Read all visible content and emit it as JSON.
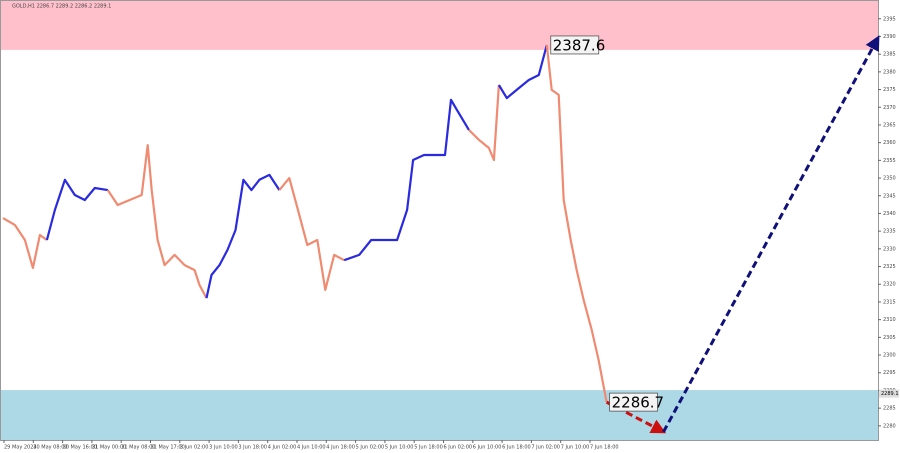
{
  "chart_data": {
    "type": "line",
    "title": "GOLD,H1  2286.7 2289.2 2286.2 2289.1",
    "xlim": [
      0,
      880
    ],
    "ylim": [
      2276.0,
      2400.3
    ],
    "yticks": [
      2280,
      2285,
      2290,
      2295,
      2300,
      2305,
      2310,
      2315,
      2320,
      2325,
      2330,
      2335,
      2340,
      2345,
      2350,
      2355,
      2360,
      2365,
      2370,
      2375,
      2380,
      2385,
      2390,
      2395
    ],
    "xtick_labels": [
      "29 May 2024",
      "30 May 08:00",
      "30 May 16:00",
      "31 May 00:00",
      "31 May 08:00",
      "31 May 17:00",
      "3 Jun 02:00",
      "3 Jun 10:00",
      "3 Jun 18:00",
      "4 Jun 02:00",
      "4 Jun 10:00",
      "4 Jun 18:00",
      "5 Jun 02:00",
      "5 Jun 10:00",
      "5 Jun 18:00",
      "6 Jun 02:00",
      "6 Jun 10:00",
      "6 Jun 18:00",
      "7 Jun 02:00",
      "7 Jun 10:00",
      "7 Jun 18:00"
    ],
    "zones": [
      {
        "color": "#ffc0cb",
        "range": [
          2386.2,
          2400.3
        ]
      },
      {
        "color": "#add8e6",
        "range": [
          2276.0,
          2290.1
        ]
      }
    ],
    "segments": [
      {
        "color": "#f08a70",
        "x": [
          3,
          15,
          25,
          33,
          40,
          47
        ],
        "values": [
          2338.7,
          2336.7,
          2332.5,
          2324.6,
          2333.9,
          2332.5
        ]
      },
      {
        "color": "#2a2ae0",
        "x": [
          47,
          55,
          65,
          75,
          85,
          95,
          108
        ],
        "values": [
          2332.5,
          2341.0,
          2349.5,
          2345.2,
          2343.8,
          2347.2,
          2346.6
        ]
      },
      {
        "color": "#f08a70",
        "x": [
          108,
          118,
          130,
          142,
          148,
          152,
          158,
          165,
          175,
          185,
          195,
          200,
          207
        ],
        "values": [
          2346.6,
          2342.4,
          2343.8,
          2345.2,
          2359.3,
          2346.6,
          2332.5,
          2325.4,
          2328.3,
          2325.4,
          2324.0,
          2319.8,
          2316.1
        ]
      },
      {
        "color": "#2a2ae0",
        "x": [
          207,
          212,
          220,
          228,
          236,
          244,
          252,
          260,
          270,
          280
        ],
        "values": [
          2316.1,
          2322.6,
          2325.4,
          2329.7,
          2335.3,
          2349.5,
          2346.6,
          2349.5,
          2350.9,
          2346.6
        ]
      },
      {
        "color": "#f08a70",
        "x": [
          280,
          290,
          300,
          308,
          318,
          326,
          335,
          345
        ],
        "values": [
          2346.6,
          2350.0,
          2339.6,
          2331.1,
          2332.5,
          2318.4,
          2328.3,
          2326.8
        ]
      },
      {
        "color": "#2a2ae0",
        "x": [
          345,
          360,
          372,
          385,
          398,
          408,
          414,
          425,
          438,
          446,
          452,
          458,
          470
        ],
        "values": [
          2326.8,
          2328.3,
          2332.5,
          2332.5,
          2332.5,
          2341.0,
          2355.1,
          2356.5,
          2356.5,
          2356.5,
          2372.1,
          2369.2,
          2363.6
        ]
      },
      {
        "color": "#f08a70",
        "x": [
          470,
          480,
          490,
          495,
          500
        ],
        "values": [
          2363.6,
          2360.8,
          2358.5,
          2355.1,
          2376.3
        ]
      },
      {
        "color": "#2a2ae0",
        "x": [
          500,
          508,
          520,
          530,
          540,
          548
        ],
        "values": [
          2376.3,
          2372.6,
          2375.4,
          2377.7,
          2379.1,
          2387.6
        ]
      },
      {
        "color": "#f08a70",
        "x": [
          548,
          553,
          560,
          565,
          572,
          578,
          585,
          593,
          600,
          608
        ],
        "values": [
          2387.6,
          2374.9,
          2373.5,
          2343.8,
          2332.5,
          2324.0,
          2315.5,
          2307.1,
          2298.6,
          2286.7
        ]
      }
    ],
    "arrows": [
      {
        "color": "#cc1010",
        "x": [
          608,
          665
        ],
        "values": [
          2286.7,
          2278.3
        ]
      },
      {
        "color": "#10107a",
        "x": [
          665,
          880
        ],
        "values": [
          2278.3,
          2389.6
        ]
      }
    ],
    "labels": [
      {
        "x": 549,
        "value": 2387.6
      },
      {
        "x": 608,
        "value": 2286.7
      }
    ],
    "last_price": 2289.1
  }
}
